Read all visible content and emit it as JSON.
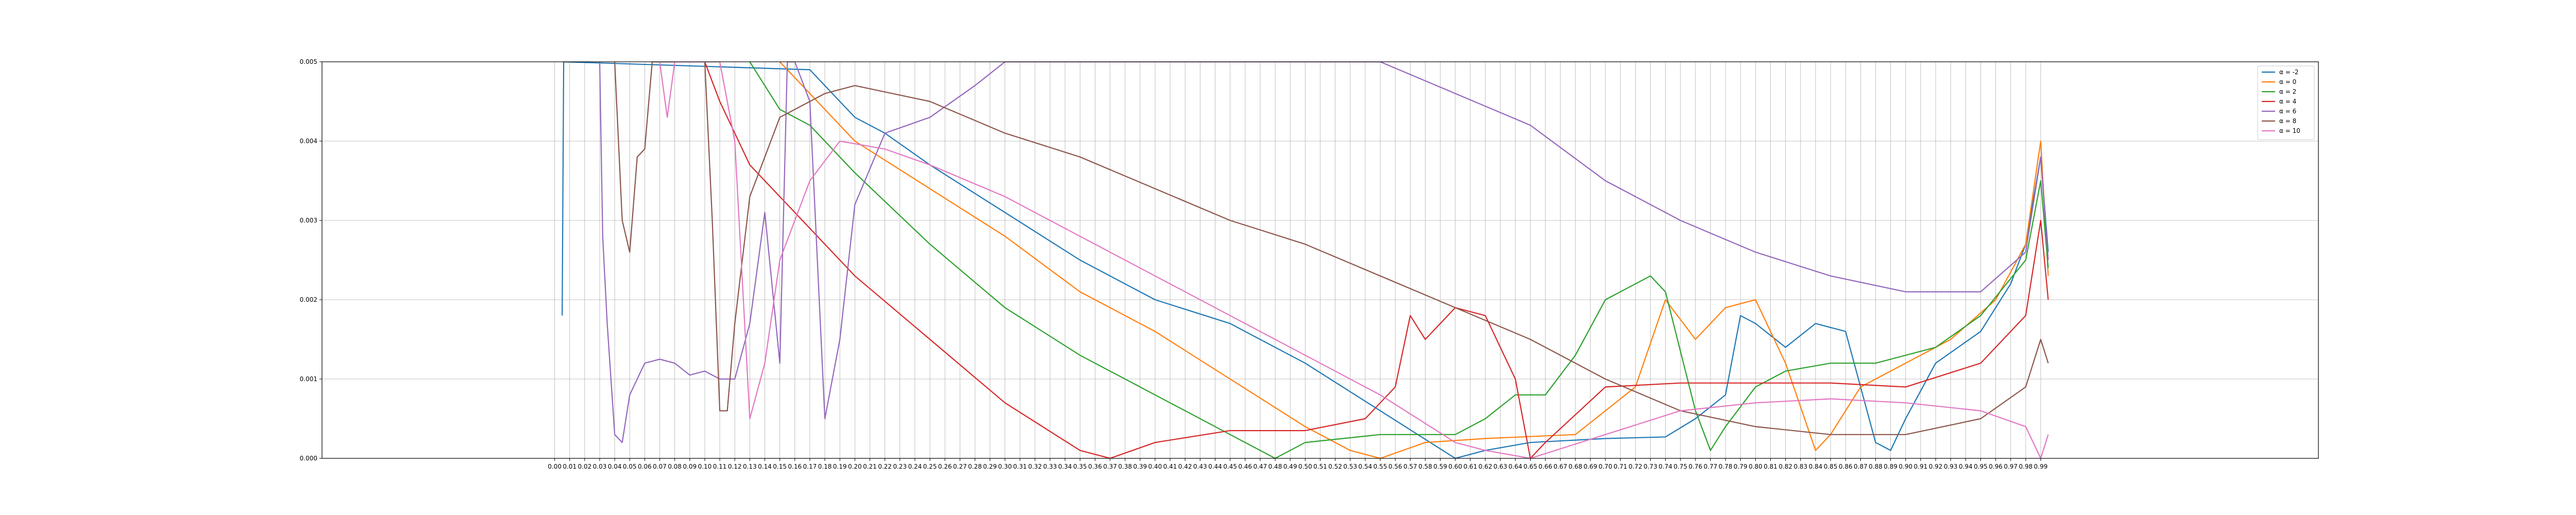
{
  "chart_data": {
    "type": "line",
    "title": "",
    "xlabel": "",
    "ylabel": "",
    "xlim": [
      -0.155,
      1.175
    ],
    "ylim": [
      0,
      0.005
    ],
    "grid": true,
    "legend_position": "top-right",
    "x_ticks": [
      "0.00",
      "0.01",
      "0.02",
      "0.03",
      "0.04",
      "0.05",
      "0.06",
      "0.07",
      "0.08",
      "0.09",
      "0.10",
      "0.11",
      "0.12",
      "0.13",
      "0.14",
      "0.15",
      "0.16",
      "0.17",
      "0.18",
      "0.19",
      "0.20",
      "0.21",
      "0.22",
      "0.23",
      "0.24",
      "0.25",
      "0.26",
      "0.27",
      "0.28",
      "0.29",
      "0.30",
      "0.31",
      "0.32",
      "0.33",
      "0.34",
      "0.35",
      "0.36",
      "0.37",
      "0.38",
      "0.39",
      "0.40",
      "0.41",
      "0.42",
      "0.43",
      "0.44",
      "0.45",
      "0.46",
      "0.47",
      "0.48",
      "0.49",
      "0.50",
      "0.51",
      "0.52",
      "0.53",
      "0.54",
      "0.55",
      "0.56",
      "0.57",
      "0.58",
      "0.59",
      "0.60",
      "0.61",
      "0.62",
      "0.63",
      "0.64",
      "0.65",
      "0.66",
      "0.67",
      "0.68",
      "0.69",
      "0.70",
      "0.71",
      "0.72",
      "0.73",
      "0.74",
      "0.75",
      "0.76",
      "0.77",
      "0.78",
      "0.79",
      "0.80",
      "0.81",
      "0.82",
      "0.83",
      "0.84",
      "0.85",
      "0.86",
      "0.87",
      "0.88",
      "0.89",
      "0.90",
      "0.91",
      "0.92",
      "0.93",
      "0.94",
      "0.95",
      "0.96",
      "0.97",
      "0.98",
      "0.99"
    ],
    "y_ticks": [
      "0.000",
      "0.001",
      "0.002",
      "0.003",
      "0.004",
      "0.005"
    ],
    "series": [
      {
        "name": "α = -2",
        "color": "#1f77b4",
        "points": [
          [
            0.005,
            0.0018
          ],
          [
            0.006,
            0.005
          ],
          [
            0.17,
            0.0049
          ],
          [
            0.18,
            0.0047
          ],
          [
            0.2,
            0.0043
          ],
          [
            0.22,
            0.0041
          ],
          [
            0.25,
            0.0037
          ],
          [
            0.3,
            0.0031
          ],
          [
            0.35,
            0.0025
          ],
          [
            0.4,
            0.002
          ],
          [
            0.45,
            0.0017
          ],
          [
            0.5,
            0.0012
          ],
          [
            0.55,
            0.0006
          ],
          [
            0.6,
            0.0
          ],
          [
            0.62,
            0.0001
          ],
          [
            0.65,
            0.0002
          ],
          [
            0.7,
            0.00025
          ],
          [
            0.74,
            0.00027
          ],
          [
            0.76,
            0.0005
          ],
          [
            0.78,
            0.0008
          ],
          [
            0.79,
            0.0018
          ],
          [
            0.8,
            0.0017
          ],
          [
            0.82,
            0.0014
          ],
          [
            0.84,
            0.0017
          ],
          [
            0.86,
            0.0016
          ],
          [
            0.88,
            0.0002
          ],
          [
            0.89,
            0.0001
          ],
          [
            0.9,
            0.0005
          ],
          [
            0.92,
            0.0012
          ],
          [
            0.95,
            0.0016
          ],
          [
            0.97,
            0.0022
          ],
          [
            0.98,
            0.0027
          ],
          [
            0.99,
            0.0038
          ],
          [
            0.995,
            0.0026
          ]
        ]
      },
      {
        "name": "α = 0",
        "color": "#ff7f0e",
        "points": [
          [
            0.15,
            0.005
          ],
          [
            0.18,
            0.0044
          ],
          [
            0.2,
            0.004
          ],
          [
            0.25,
            0.0034
          ],
          [
            0.3,
            0.0028
          ],
          [
            0.35,
            0.0021
          ],
          [
            0.4,
            0.0016
          ],
          [
            0.45,
            0.001
          ],
          [
            0.5,
            0.0004
          ],
          [
            0.53,
            0.0001
          ],
          [
            0.55,
            0.0
          ],
          [
            0.58,
            0.0002
          ],
          [
            0.62,
            0.00025
          ],
          [
            0.68,
            0.0003
          ],
          [
            0.72,
            0.0009
          ],
          [
            0.74,
            0.002
          ],
          [
            0.76,
            0.0015
          ],
          [
            0.78,
            0.0019
          ],
          [
            0.8,
            0.002
          ],
          [
            0.82,
            0.0012
          ],
          [
            0.84,
            0.0001
          ],
          [
            0.85,
            0.0003
          ],
          [
            0.87,
            0.0009
          ],
          [
            0.9,
            0.0012
          ],
          [
            0.93,
            0.0015
          ],
          [
            0.96,
            0.002
          ],
          [
            0.98,
            0.0027
          ],
          [
            0.99,
            0.004
          ],
          [
            0.995,
            0.0023
          ]
        ]
      },
      {
        "name": "α = 2",
        "color": "#2ca02c",
        "points": [
          [
            0.13,
            0.005
          ],
          [
            0.15,
            0.0044
          ],
          [
            0.17,
            0.0042
          ],
          [
            0.2,
            0.0036
          ],
          [
            0.25,
            0.0027
          ],
          [
            0.3,
            0.0019
          ],
          [
            0.35,
            0.0013
          ],
          [
            0.4,
            0.0008
          ],
          [
            0.45,
            0.0003
          ],
          [
            0.48,
            0.0
          ],
          [
            0.5,
            0.0002
          ],
          [
            0.55,
            0.0003
          ],
          [
            0.6,
            0.0003
          ],
          [
            0.62,
            0.0005
          ],
          [
            0.64,
            0.0008
          ],
          [
            0.66,
            0.0008
          ],
          [
            0.68,
            0.0013
          ],
          [
            0.7,
            0.002
          ],
          [
            0.72,
            0.0022
          ],
          [
            0.73,
            0.0023
          ],
          [
            0.74,
            0.0021
          ],
          [
            0.76,
            0.0006
          ],
          [
            0.77,
            0.0001
          ],
          [
            0.78,
            0.0004
          ],
          [
            0.8,
            0.0009
          ],
          [
            0.82,
            0.0011
          ],
          [
            0.85,
            0.0012
          ],
          [
            0.88,
            0.0012
          ],
          [
            0.92,
            0.0014
          ],
          [
            0.95,
            0.0018
          ],
          [
            0.98,
            0.0025
          ],
          [
            0.99,
            0.0035
          ],
          [
            0.995,
            0.0024
          ]
        ]
      },
      {
        "name": "α = 4",
        "color": "#d62728",
        "points": [
          [
            0.1,
            0.005
          ],
          [
            0.11,
            0.0045
          ],
          [
            0.13,
            0.0037
          ],
          [
            0.15,
            0.0033
          ],
          [
            0.2,
            0.0023
          ],
          [
            0.25,
            0.0015
          ],
          [
            0.3,
            0.0007
          ],
          [
            0.35,
            0.0001
          ],
          [
            0.37,
            0.0
          ],
          [
            0.4,
            0.0002
          ],
          [
            0.45,
            0.00035
          ],
          [
            0.5,
            0.00035
          ],
          [
            0.54,
            0.0005
          ],
          [
            0.56,
            0.0009
          ],
          [
            0.57,
            0.0018
          ],
          [
            0.58,
            0.0015
          ],
          [
            0.6,
            0.0019
          ],
          [
            0.62,
            0.0018
          ],
          [
            0.64,
            0.001
          ],
          [
            0.65,
            0.0
          ],
          [
            0.66,
            0.0002
          ],
          [
            0.7,
            0.0009
          ],
          [
            0.75,
            0.00095
          ],
          [
            0.8,
            0.00095
          ],
          [
            0.85,
            0.00095
          ],
          [
            0.9,
            0.0009
          ],
          [
            0.95,
            0.0012
          ],
          [
            0.98,
            0.0018
          ],
          [
            0.99,
            0.003
          ],
          [
            0.995,
            0.002
          ]
        ]
      },
      {
        "name": "α = 6",
        "color": "#9467bd",
        "points": [
          [
            0.03,
            0.005
          ],
          [
            0.032,
            0.0028
          ],
          [
            0.035,
            0.0017
          ],
          [
            0.04,
            0.0003
          ],
          [
            0.045,
            0.0002
          ],
          [
            0.05,
            0.0008
          ],
          [
            0.06,
            0.0012
          ],
          [
            0.07,
            0.00125
          ],
          [
            0.08,
            0.0012
          ],
          [
            0.09,
            0.00105
          ],
          [
            0.1,
            0.0011
          ],
          [
            0.11,
            0.001
          ],
          [
            0.12,
            0.001
          ],
          [
            0.13,
            0.0017
          ],
          [
            0.14,
            0.0031
          ],
          [
            0.15,
            0.0012
          ],
          [
            0.155,
            0.005
          ],
          [
            0.16,
            0.005
          ],
          [
            0.17,
            0.0045
          ],
          [
            0.18,
            0.0005
          ],
          [
            0.19,
            0.0015
          ],
          [
            0.2,
            0.0032
          ],
          [
            0.22,
            0.0041
          ],
          [
            0.25,
            0.0043
          ],
          [
            0.28,
            0.0047
          ],
          [
            0.3,
            0.005
          ],
          [
            0.55,
            0.005
          ],
          [
            0.6,
            0.0046
          ],
          [
            0.65,
            0.0042
          ],
          [
            0.7,
            0.0035
          ],
          [
            0.75,
            0.003
          ],
          [
            0.8,
            0.0026
          ],
          [
            0.85,
            0.0023
          ],
          [
            0.9,
            0.0021
          ],
          [
            0.95,
            0.0021
          ],
          [
            0.98,
            0.0026
          ],
          [
            0.99,
            0.0038
          ],
          [
            0.995,
            0.0025
          ]
        ]
      },
      {
        "name": "α = 8",
        "color": "#8c564b",
        "points": [
          [
            0.04,
            0.005
          ],
          [
            0.045,
            0.003
          ],
          [
            0.05,
            0.0026
          ],
          [
            0.055,
            0.0038
          ],
          [
            0.06,
            0.0039
          ],
          [
            0.065,
            0.005
          ],
          [
            0.1,
            0.005
          ],
          [
            0.105,
            0.003
          ],
          [
            0.11,
            0.0006
          ],
          [
            0.115,
            0.0006
          ],
          [
            0.12,
            0.0017
          ],
          [
            0.13,
            0.0033
          ],
          [
            0.15,
            0.0043
          ],
          [
            0.18,
            0.0046
          ],
          [
            0.2,
            0.0047
          ],
          [
            0.25,
            0.0045
          ],
          [
            0.3,
            0.0041
          ],
          [
            0.35,
            0.0038
          ],
          [
            0.4,
            0.0034
          ],
          [
            0.45,
            0.003
          ],
          [
            0.5,
            0.0027
          ],
          [
            0.55,
            0.0023
          ],
          [
            0.6,
            0.0019
          ],
          [
            0.65,
            0.0015
          ],
          [
            0.7,
            0.001
          ],
          [
            0.75,
            0.0006
          ],
          [
            0.8,
            0.0004
          ],
          [
            0.85,
            0.0003
          ],
          [
            0.9,
            0.0003
          ],
          [
            0.95,
            0.0005
          ],
          [
            0.98,
            0.0009
          ],
          [
            0.99,
            0.0015
          ],
          [
            0.995,
            0.0012
          ]
        ]
      },
      {
        "name": "α = 10",
        "color": "#e377c2",
        "points": [
          [
            0.07,
            0.005
          ],
          [
            0.075,
            0.0043
          ],
          [
            0.08,
            0.005
          ],
          [
            0.11,
            0.005
          ],
          [
            0.12,
            0.004
          ],
          [
            0.13,
            0.0005
          ],
          [
            0.14,
            0.0012
          ],
          [
            0.15,
            0.0025
          ],
          [
            0.17,
            0.0035
          ],
          [
            0.19,
            0.004
          ],
          [
            0.22,
            0.0039
          ],
          [
            0.25,
            0.0037
          ],
          [
            0.3,
            0.0033
          ],
          [
            0.35,
            0.0028
          ],
          [
            0.4,
            0.0023
          ],
          [
            0.45,
            0.0018
          ],
          [
            0.5,
            0.0013
          ],
          [
            0.55,
            0.0008
          ],
          [
            0.6,
            0.0002
          ],
          [
            0.62,
            0.0001
          ],
          [
            0.65,
            0.0
          ],
          [
            0.7,
            0.0003
          ],
          [
            0.75,
            0.0006
          ],
          [
            0.8,
            0.0007
          ],
          [
            0.85,
            0.00075
          ],
          [
            0.9,
            0.0007
          ],
          [
            0.95,
            0.0006
          ],
          [
            0.98,
            0.0004
          ],
          [
            0.99,
            0.0
          ],
          [
            0.995,
            0.0003
          ]
        ]
      }
    ]
  }
}
